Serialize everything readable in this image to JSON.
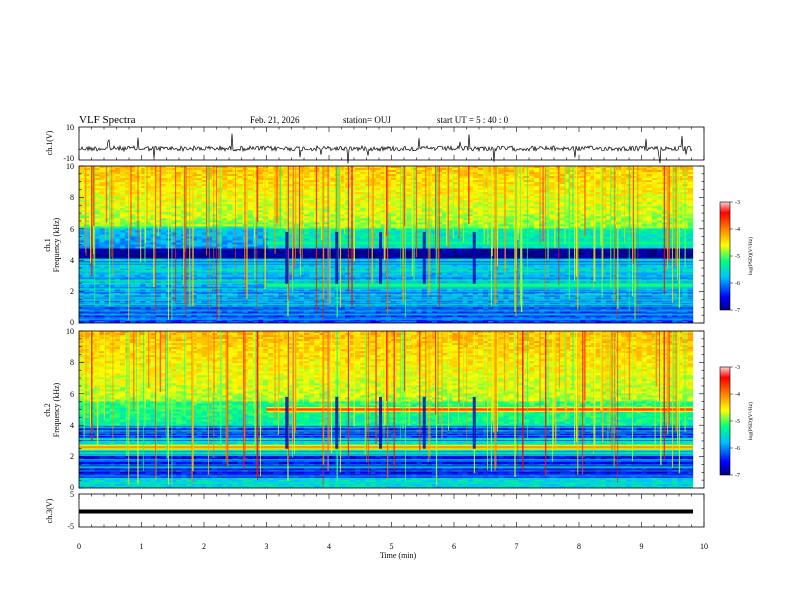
{
  "header": {
    "title": "VLF Spectra",
    "date": "Feb. 21, 2026",
    "station": "station= OUJ",
    "start_ut": "start  UT  =   5  : 40 : 0"
  },
  "chart_data": [
    {
      "type": "line",
      "name": "ch.1 waveform",
      "ylabel": "ch.1(V)",
      "ylim": [
        -10,
        10
      ],
      "ytick_labels": [
        "10",
        "-10"
      ],
      "baseline": 0,
      "xlim": [
        0,
        10
      ]
    },
    {
      "type": "heatmap",
      "name": "ch.1 spectrogram",
      "ylabel_line1": "ch.1",
      "ylabel_line2": "Frequency  (kHz)",
      "ylim": [
        0,
        10
      ],
      "ytick_labels": [
        "0",
        "2",
        "4",
        "6",
        "8",
        "10"
      ],
      "xlim": [
        0,
        10
      ],
      "emission_bands_khz": [
        {
          "freq": 5.1,
          "start_min": 3.0,
          "end_min": 9.8
        },
        {
          "freq": 2.4,
          "start_min": 3.0,
          "end_min": 9.8
        },
        {
          "freq": 4.4,
          "start_min": 0,
          "end_min": 9.8
        }
      ],
      "colorbar": {
        "label": "log(PSD)(V²/Hz)",
        "range": [
          -7,
          -3
        ],
        "tick_labels": [
          "-3",
          "-4",
          "-5",
          "-6",
          "-7"
        ]
      }
    },
    {
      "type": "heatmap",
      "name": "ch.2 spectrogram",
      "ylabel_line1": "ch.2",
      "ylabel_line2": "Frequency  (kHz)",
      "ylim": [
        0,
        10
      ],
      "ytick_labels": [
        "0",
        "2",
        "4",
        "6",
        "8",
        "10"
      ],
      "xlim": [
        0,
        10
      ],
      "emission_bands_khz": [
        {
          "freq": 5.0,
          "start_min": 3.0,
          "end_min": 9.8
        },
        {
          "freq": 2.6,
          "start_min": 0,
          "end_min": 9.8
        }
      ],
      "colorbar": {
        "label": "log(PSD)(V²/Hz)",
        "range": [
          -7,
          -3
        ],
        "tick_labels": [
          "-3",
          "-4",
          "-5",
          "-6",
          "-7"
        ]
      }
    },
    {
      "type": "line",
      "name": "ch.3 waveform",
      "ylabel": "ch.3(V)",
      "ylim": [
        -5,
        5
      ],
      "ytick_labels": [
        "5",
        "-5"
      ],
      "baseline": -1,
      "xlim": [
        0,
        10
      ]
    }
  ],
  "x_axis": {
    "label": "Time  (min)",
    "range": [
      0,
      10
    ],
    "tick_labels": [
      "0",
      "1",
      "2",
      "3",
      "4",
      "5",
      "6",
      "7",
      "8",
      "9",
      "10"
    ]
  },
  "colors": {
    "colormap": [
      "#00008b",
      "#0000ff",
      "#00bfff",
      "#00ff80",
      "#ffff00",
      "#ff8000",
      "#ff0000",
      "#ffc0c0"
    ]
  }
}
